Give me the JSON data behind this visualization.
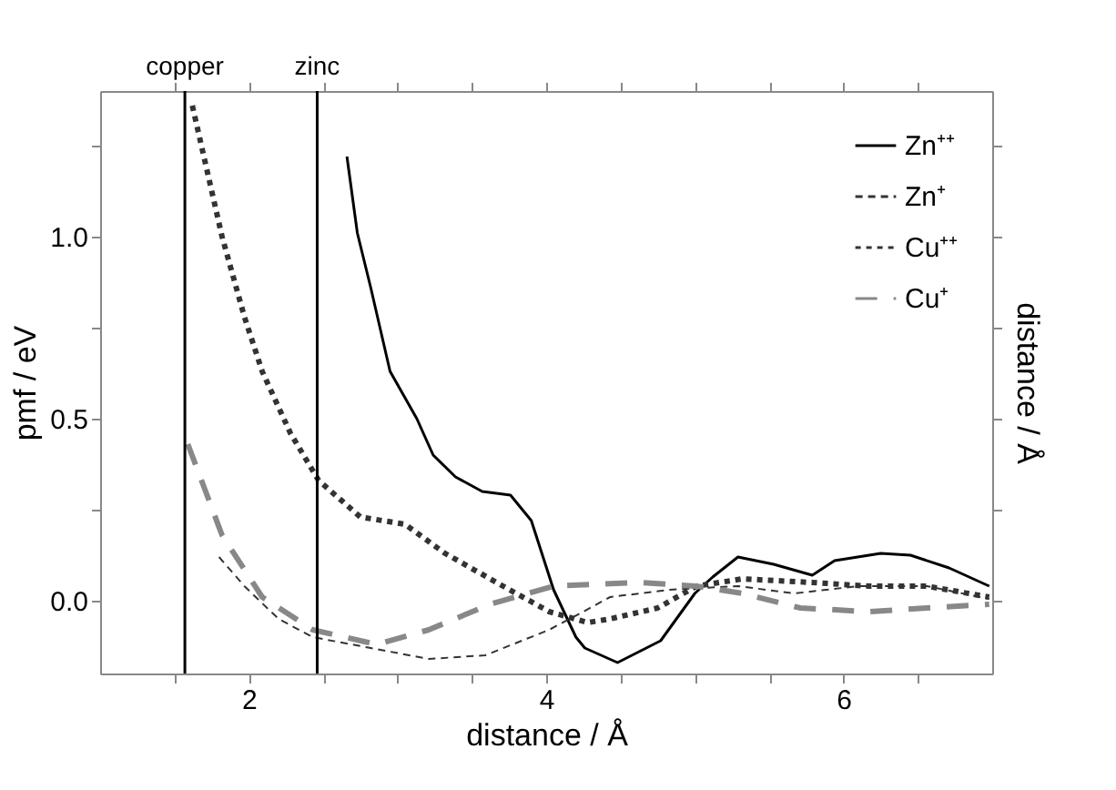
{
  "chart_data": {
    "type": "line",
    "xlabel": "distance / Å",
    "ylabel": "pmf / eV",
    "y2label": "distance / Å",
    "xlim": [
      1,
      7
    ],
    "ylim": [
      -0.2,
      1.4
    ],
    "xticks": [
      {
        "value": 1.5,
        "label": null
      },
      2,
      {
        "value": 2.5,
        "label": null
      },
      {
        "value": 3,
        "label": null
      },
      {
        "value": 3.5,
        "label": null
      },
      4,
      {
        "value": 4.5,
        "label": null
      },
      {
        "value": 5,
        "label": null
      },
      {
        "value": 5.5,
        "label": null
      },
      6,
      {
        "value": 6.5,
        "label": null
      }
    ],
    "yticks": [
      {
        "value": 0,
        "label": "0.0"
      },
      {
        "value": 0.25,
        "label": null
      },
      {
        "value": 0.5,
        "label": "0.5"
      },
      {
        "value": 0.75,
        "label": null
      },
      {
        "value": 1,
        "label": "1.0"
      },
      {
        "value": 1.25,
        "label": null
      }
    ],
    "grid": false,
    "legend": "top right",
    "marker": "none",
    "ref_lines": [
      {
        "axis": "x",
        "value": 1.57,
        "label": "copper",
        "color": "#000000"
      },
      {
        "axis": "x",
        "value": 2.46,
        "label": "zinc",
        "color": "#000000"
      }
    ],
    "series": [
      {
        "name": "Zn⁺⁺",
        "color": "#000000",
        "line_style": "solid",
        "x": [
          2.66,
          2.73,
          2.82,
          2.95,
          3.13,
          3.24,
          3.39,
          3.57,
          3.76,
          3.9,
          4.05,
          4.2,
          4.26,
          4.48,
          4.77,
          5.0,
          5.12,
          5.29,
          5.53,
          5.79,
          5.94,
          6.25,
          6.45,
          6.71,
          6.98
        ],
        "values": [
          1.22,
          1.01,
          0.86,
          0.63,
          0.5,
          0.4,
          0.34,
          0.3,
          0.29,
          0.22,
          0.03,
          -0.1,
          -0.13,
          -0.17,
          -0.11,
          0.02,
          0.065,
          0.12,
          0.1,
          0.07,
          0.11,
          0.13,
          0.125,
          0.09,
          0.04
        ]
      },
      {
        "name": "Zn⁺",
        "color": "#333333",
        "line_style": "dashed",
        "x": [
          1.8,
          1.97,
          2.2,
          2.43,
          2.82,
          3.21,
          3.59,
          4.02,
          4.25,
          4.43,
          4.83,
          5.29,
          5.67,
          6.1,
          6.56,
          6.98
        ],
        "values": [
          0.12,
          0.04,
          -0.05,
          -0.1,
          -0.13,
          -0.16,
          -0.15,
          -0.08,
          -0.03,
          0.01,
          0.03,
          0.04,
          0.02,
          0.04,
          0.04,
          0.005
        ]
      },
      {
        "name": "Cu⁺⁺",
        "color": "#333333",
        "line_style": "dotted",
        "x": [
          1.62,
          1.82,
          1.97,
          2.09,
          2.28,
          2.47,
          2.75,
          3.05,
          3.32,
          3.71,
          4.02,
          4.28,
          4.43,
          4.75,
          5.01,
          5.32,
          5.79,
          6.17,
          6.56,
          6.98
        ],
        "values": [
          1.36,
          1.0,
          0.78,
          0.63,
          0.46,
          0.33,
          0.23,
          0.21,
          0.13,
          0.04,
          -0.03,
          -0.06,
          -0.05,
          -0.02,
          0.04,
          0.06,
          0.05,
          0.04,
          0.04,
          0.01
        ]
      },
      {
        "name": "Cu⁺",
        "color": "#888888",
        "line_style": "dashed",
        "x": [
          1.59,
          1.82,
          2.09,
          2.43,
          2.86,
          3.21,
          3.62,
          4.05,
          4.63,
          5.01,
          5.32,
          5.71,
          6.17,
          6.56,
          6.98
        ],
        "values": [
          0.43,
          0.18,
          0.01,
          -0.08,
          -0.12,
          -0.08,
          -0.01,
          0.04,
          0.05,
          0.04,
          0.02,
          -0.02,
          -0.03,
          -0.02,
          -0.01
        ]
      }
    ]
  }
}
